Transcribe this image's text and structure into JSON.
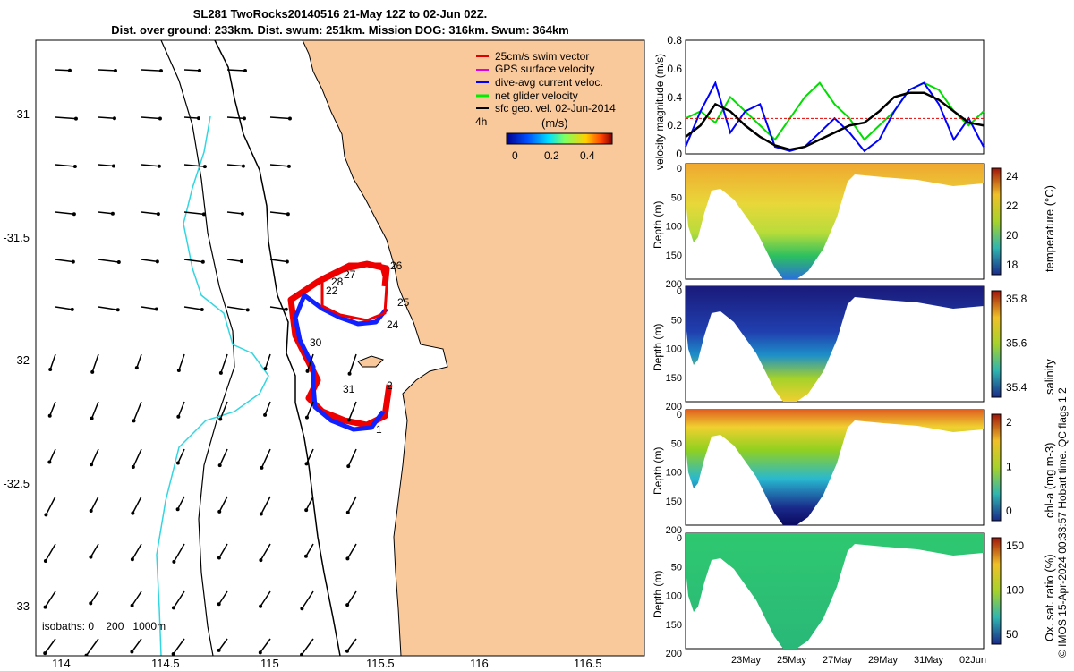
{
  "header": {
    "title_line1": "SL281 TwoRocks20140516 21-May 12Z to 02-Jun 02Z.",
    "title_line2": "Dist. over ground: 233km. Dist. swum: 251km. Mission DOG: 316km. Swum: 364km"
  },
  "credit": "© IMOS 15-Apr-2024 00:33:57 Hobart time. QC flags 1  2",
  "map": {
    "xticks": [
      "114",
      "114.5",
      "115",
      "115.5",
      "116",
      "116.5"
    ],
    "yticks": [
      "-31",
      "-31.5",
      "-32",
      "-32.5",
      "-33"
    ],
    "legend": [
      {
        "label": "25cm/s swim vector",
        "color": "#e00000"
      },
      {
        "label": "GPS surface velocity",
        "color": "#e000e0"
      },
      {
        "label": "dive-avg current veloc.",
        "color": "#0000ff"
      },
      {
        "label": "net glider velocity",
        "color": "#00ee00"
      },
      {
        "label": "sfc geo. vel. 02-Jun-2014",
        "color": "#000000"
      }
    ],
    "legend_side_label": "4h",
    "colorbar_label": "(m/s)",
    "colorbar_ticks": [
      "0",
      "0.2",
      "0.4"
    ],
    "day_labels": [
      "26",
      "27",
      "28",
      "22",
      "25",
      "24",
      "30",
      "31",
      "2",
      "1"
    ],
    "isobath_note": "isobaths: 0    200   1000m",
    "colors": {
      "land": "#f9c89b",
      "isobath200": "#000000",
      "isobath1000": "#33d6e0",
      "track_red": "#ee0000",
      "track_blue": "#1020ff"
    }
  },
  "chart_data": [
    {
      "type": "line",
      "title": "",
      "ylabel": "velocity magnitude (m/s)",
      "ylim": [
        0,
        0.8
      ],
      "yticks": [
        "0",
        "0.2",
        "0.4",
        "0.6",
        "0.8"
      ],
      "x": [
        0,
        0.05,
        0.1,
        0.15,
        0.2,
        0.25,
        0.3,
        0.35,
        0.4,
        0.45,
        0.5,
        0.55,
        0.6,
        0.65,
        0.7,
        0.75,
        0.8,
        0.85,
        0.9,
        0.95,
        1.0
      ],
      "series": [
        {
          "name": "net glider velocity",
          "color": "#00dd00",
          "values": [
            0.25,
            0.3,
            0.22,
            0.4,
            0.3,
            0.2,
            0.1,
            0.25,
            0.4,
            0.5,
            0.35,
            0.25,
            0.1,
            0.2,
            0.3,
            0.45,
            0.5,
            0.45,
            0.3,
            0.2,
            0.3
          ]
        },
        {
          "name": "dive-avg current veloc.",
          "color": "#0000ff",
          "values": [
            0.05,
            0.3,
            0.5,
            0.15,
            0.3,
            0.35,
            0.05,
            0.02,
            0.05,
            0.15,
            0.25,
            0.15,
            0.02,
            0.1,
            0.3,
            0.45,
            0.5,
            0.35,
            0.1,
            0.25,
            0.05
          ]
        },
        {
          "name": "25cm/s swim vector",
          "color": "#e00000",
          "values": [
            0.25,
            0.25,
            0.25,
            0.25,
            0.25,
            0.25,
            0.25,
            0.25,
            0.25,
            0.25,
            0.25,
            0.25,
            0.25,
            0.25,
            0.25,
            0.25,
            0.25,
            0.25,
            0.25,
            0.25,
            0.25
          ]
        },
        {
          "name": "sfc geo. vel.",
          "color": "#000000",
          "values": [
            0.12,
            0.2,
            0.35,
            0.3,
            0.2,
            0.12,
            0.06,
            0.03,
            0.05,
            0.1,
            0.15,
            0.2,
            0.22,
            0.3,
            0.4,
            0.43,
            0.43,
            0.38,
            0.3,
            0.22,
            0.2
          ]
        }
      ]
    },
    {
      "type": "heatmap",
      "ylabel": "Depth (m)",
      "cbar_label": "temperature (°C)",
      "cbar_ticks": [
        "24",
        "22",
        "20",
        "18"
      ],
      "yticks": [
        "0",
        "50",
        "100",
        "150",
        "200"
      ]
    },
    {
      "type": "heatmap",
      "ylabel": "Depth (m)",
      "cbar_label": "salinity",
      "cbar_ticks": [
        "35.8",
        "35.6",
        "35.4"
      ],
      "yticks": [
        "0",
        "50",
        "100",
        "150",
        "200"
      ]
    },
    {
      "type": "heatmap",
      "ylabel": "Depth (m)",
      "cbar_label": "chl-a (mg m-3)",
      "cbar_ticks": [
        "2",
        "1",
        "0"
      ],
      "yticks": [
        "0",
        "50",
        "100",
        "150",
        "200"
      ]
    },
    {
      "type": "heatmap",
      "ylabel": "Depth (m)",
      "cbar_label": "Ox. sat. ratio (%)",
      "cbar_ticks": [
        "150",
        "100",
        "50"
      ],
      "yticks": [
        "0",
        "50",
        "100",
        "150",
        "200"
      ],
      "xticks": [
        "23May",
        "25May",
        "27May",
        "29May",
        "31May",
        "02Jun"
      ]
    }
  ]
}
